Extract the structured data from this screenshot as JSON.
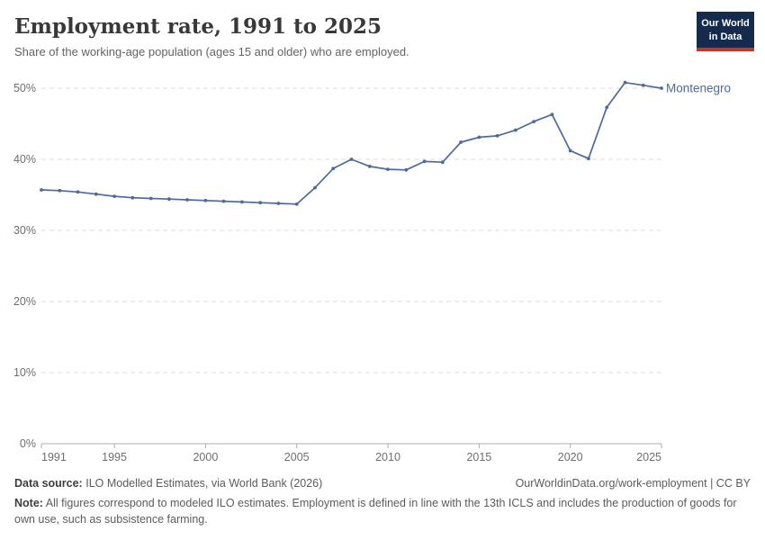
{
  "header": {
    "title": "Employment rate, 1991 to 2025",
    "subtitle": "Share of the working-age population (ages 15 and older) who are employed."
  },
  "logo": {
    "line1": "Our World",
    "line2": "in Data",
    "bg_color": "#142a4e",
    "accent_color": "#c0392b"
  },
  "chart_data": {
    "type": "line",
    "title": "Employment rate, 1991 to 2025",
    "xlabel": "",
    "ylabel": "",
    "x": [
      1991,
      1992,
      1993,
      1994,
      1995,
      1996,
      1997,
      1998,
      1999,
      2000,
      2001,
      2002,
      2003,
      2004,
      2005,
      2006,
      2007,
      2008,
      2009,
      2010,
      2011,
      2012,
      2013,
      2014,
      2015,
      2016,
      2017,
      2018,
      2019,
      2020,
      2021,
      2022,
      2023,
      2024,
      2025
    ],
    "series": [
      {
        "name": "Montenegro",
        "color": "#4C6A9C",
        "values": [
          35.7,
          35.6,
          35.4,
          35.1,
          34.8,
          34.6,
          34.5,
          34.4,
          34.3,
          34.2,
          34.1,
          34.0,
          33.9,
          33.8,
          33.7,
          36.0,
          38.7,
          40.0,
          39.0,
          38.6,
          38.5,
          39.7,
          39.6,
          42.4,
          43.1,
          43.3,
          44.1,
          45.3,
          46.3,
          41.2,
          40.1,
          47.3,
          50.8,
          50.4,
          50.0
        ]
      }
    ],
    "ylim": [
      0,
      50
    ],
    "yticks": [
      0,
      10,
      20,
      30,
      40,
      50
    ],
    "ytick_suffix": "%",
    "xticks": [
      1991,
      1995,
      2000,
      2005,
      2010,
      2015,
      2020,
      2025
    ],
    "grid": "horizontal-dashed",
    "grid_color": "#dcdcdc",
    "axis_color": "#adadad",
    "tick_label_color": "#6e6e6e",
    "legend_position": "end-of-line-label",
    "end_label": "Montenegro"
  },
  "footer": {
    "source_label": "Data source:",
    "source_text": "ILO Modelled Estimates, via World Bank (2026)",
    "link_text": "OurWorldinData.org/work-employment | CC BY",
    "note_label": "Note:",
    "note_text": "All figures correspond to modeled ILO estimates. Employment is defined in line with the 13th ICLS and includes the production of goods for own use, such as subsistence farming."
  }
}
